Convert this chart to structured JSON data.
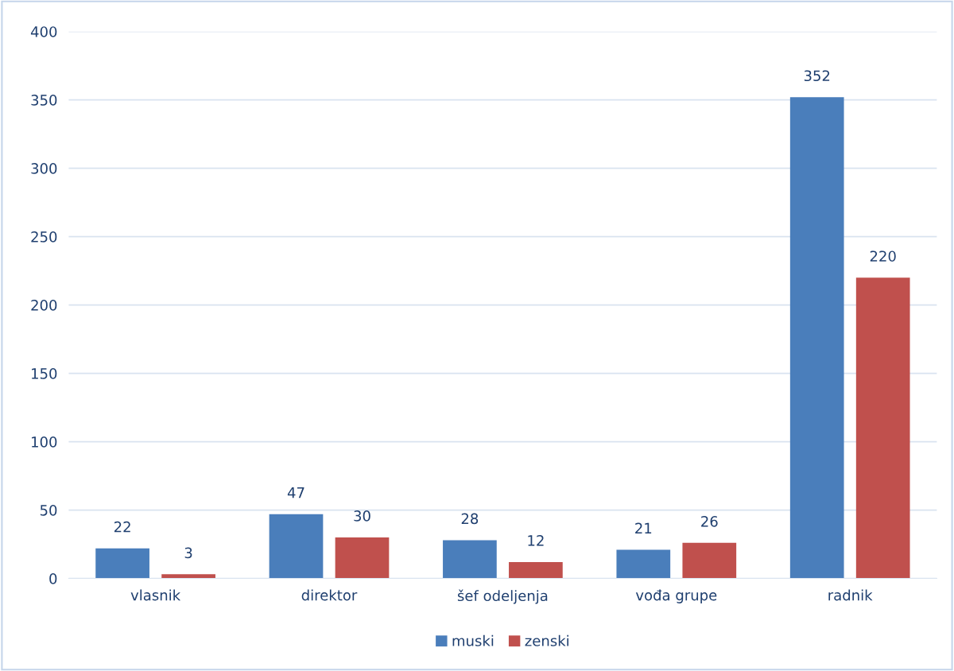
{
  "chart_data": {
    "type": "bar",
    "categories": [
      "vlasnik",
      "direktor",
      "šef odeljenja",
      "vođa grupe",
      "radnik"
    ],
    "series": [
      {
        "name": "muski",
        "color": "#4a7ebb",
        "values": [
          22,
          47,
          28,
          21,
          352
        ]
      },
      {
        "name": "zenski",
        "color": "#c0504d",
        "values": [
          3,
          30,
          12,
          26,
          220
        ]
      }
    ],
    "ylim": [
      0,
      400
    ],
    "yticks": [
      0,
      50,
      100,
      150,
      200,
      250,
      300,
      350,
      400
    ],
    "grid": "y",
    "legend": "bottom",
    "data_labels": true
  }
}
